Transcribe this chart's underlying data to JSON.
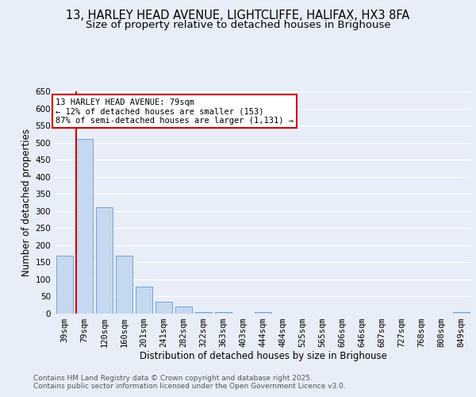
{
  "title_line1": "13, HARLEY HEAD AVENUE, LIGHTCLIFFE, HALIFAX, HX3 8FA",
  "title_line2": "Size of property relative to detached houses in Brighouse",
  "xlabel": "Distribution of detached houses by size in Brighouse",
  "ylabel": "Number of detached properties",
  "categories": [
    "39sqm",
    "79sqm",
    "120sqm",
    "160sqm",
    "201sqm",
    "241sqm",
    "282sqm",
    "322sqm",
    "363sqm",
    "403sqm",
    "444sqm",
    "484sqm",
    "525sqm",
    "565sqm",
    "606sqm",
    "646sqm",
    "687sqm",
    "727sqm",
    "768sqm",
    "808sqm",
    "849sqm"
  ],
  "values": [
    170,
    510,
    310,
    170,
    80,
    35,
    20,
    5,
    5,
    0,
    5,
    0,
    0,
    0,
    0,
    0,
    0,
    0,
    0,
    0,
    5
  ],
  "bar_color": "#c5d8f0",
  "bar_edge_color": "#6699cc",
  "highlight_index": 1,
  "highlight_line_color": "#cc0000",
  "annotation_text": "13 HARLEY HEAD AVENUE: 79sqm\n← 12% of detached houses are smaller (153)\n87% of semi-detached houses are larger (1,131) →",
  "annotation_box_color": "#ffffff",
  "annotation_box_edge": "#cc0000",
  "ylim": [
    0,
    650
  ],
  "yticks": [
    0,
    50,
    100,
    150,
    200,
    250,
    300,
    350,
    400,
    450,
    500,
    550,
    600,
    650
  ],
  "background_color": "#e8eef8",
  "grid_color": "#ffffff",
  "footnote1": "Contains HM Land Registry data © Crown copyright and database right 2025.",
  "footnote2": "Contains public sector information licensed under the Open Government Licence v3.0.",
  "title_fontsize": 10.5,
  "subtitle_fontsize": 9.5,
  "axis_label_fontsize": 8.5,
  "tick_fontsize": 7.5,
  "annotation_fontsize": 7.5,
  "footnote_fontsize": 6.5
}
